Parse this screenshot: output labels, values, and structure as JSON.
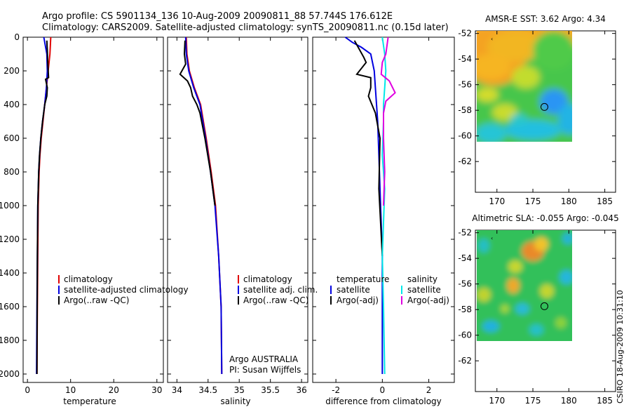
{
  "header": {
    "title1": "Argo profile: CS 5901134_136 10-Aug-2009 20090811_88 57.744S 176.612E",
    "title2": "Climatology: CARS2009. Satellite-adjusted climatology: synTS_20090811.nc (0.15d later)"
  },
  "side_label": "CSIRO 18-Aug-2009 10:31:10",
  "colors": {
    "red": "#e00000",
    "blue": "#0000e0",
    "black": "#000000",
    "cyan": "#00e8e8",
    "magenta": "#e000e0"
  },
  "chart_data": [
    {
      "id": "temp",
      "type": "line",
      "xlabel": "temperature",
      "xlim": [
        -1,
        31.5
      ],
      "ylim": [
        2050,
        0
      ],
      "xticks": [
        0,
        10,
        20,
        30
      ],
      "yticks": [
        0,
        200,
        400,
        600,
        800,
        1000,
        1200,
        1400,
        1600,
        1800,
        2000
      ],
      "legend": [
        {
          "label": "climatology",
          "color": "red"
        },
        {
          "label": "satellite-adjusted climatology",
          "color": "blue"
        },
        {
          "label": "Argo(..raw -QC)",
          "color": "black"
        }
      ],
      "series": [
        {
          "color": "red",
          "x": [
            5.4,
            5.2,
            4.8,
            4.4,
            4.0,
            3.6,
            3.2,
            2.9,
            2.7,
            2.5,
            2.4,
            2.3,
            2.2
          ],
          "y": [
            0,
            100,
            200,
            300,
            400,
            500,
            600,
            700,
            800,
            1000,
            1300,
            1600,
            2000
          ]
        },
        {
          "color": "blue",
          "x": [
            3.8,
            4.5,
            4.6,
            4.4,
            4.0,
            3.5,
            3.1,
            2.8,
            2.6,
            2.4,
            2.3,
            2.2,
            2.1
          ],
          "y": [
            0,
            100,
            200,
            300,
            400,
            500,
            600,
            700,
            800,
            1000,
            1300,
            1600,
            2000
          ]
        },
        {
          "color": "black",
          "x": [
            4.5,
            4.6,
            4.7,
            4.9,
            4.2,
            4.6,
            4.5,
            4.0,
            3.5,
            3.1,
            2.8,
            2.6,
            2.4,
            2.3,
            2.2
          ],
          "y": [
            20,
            80,
            150,
            240,
            250,
            300,
            350,
            400,
            500,
            600,
            700,
            800,
            1000,
            1300,
            2000
          ]
        }
      ]
    },
    {
      "id": "sal",
      "type": "line",
      "xlabel": "salinity",
      "xlim": [
        33.85,
        36.1
      ],
      "ylim": [
        2050,
        0
      ],
      "xticks": [
        34,
        34.5,
        35,
        35.5,
        36
      ],
      "legend": [
        {
          "label": "climatology",
          "color": "red"
        },
        {
          "label": "satellite adj. clim.",
          "color": "blue"
        },
        {
          "label": "Argo(..raw -QC)",
          "color": "black"
        }
      ],
      "annotation": [
        "Argo AUSTRALIA",
        "PI: Susan Wijffels"
      ],
      "series": [
        {
          "color": "red",
          "x": [
            34.15,
            34.16,
            34.2,
            34.28,
            34.38,
            34.47,
            34.55,
            34.62,
            34.67,
            34.71,
            34.72
          ],
          "y": [
            0,
            100,
            200,
            300,
            400,
            600,
            800,
            1000,
            1300,
            1600,
            2000
          ]
        },
        {
          "color": "blue",
          "x": [
            34.14,
            34.15,
            34.19,
            34.27,
            34.37,
            34.46,
            34.54,
            34.61,
            34.67,
            34.71,
            34.72
          ],
          "y": [
            0,
            100,
            200,
            300,
            400,
            600,
            800,
            1000,
            1300,
            1600,
            2000
          ]
        },
        {
          "color": "black",
          "x": [
            34.13,
            34.12,
            34.14,
            34.05,
            34.17,
            34.22,
            34.25,
            34.32,
            34.37,
            34.45,
            34.54,
            34.61
          ],
          "y": [
            20,
            100,
            160,
            220,
            260,
            300,
            350,
            400,
            450,
            600,
            800,
            1000
          ]
        }
      ]
    },
    {
      "id": "diff",
      "type": "line",
      "xlabel": "difference from climatology",
      "xlim": [
        -3,
        3.1
      ],
      "ylim": [
        2050,
        0
      ],
      "xticks": [
        -2,
        0,
        2
      ],
      "legend": [
        {
          "label": "temperature",
          "color": "none"
        },
        {
          "label": "satellite",
          "color": "blue"
        },
        {
          "label": "Argo(-adj)",
          "color": "black"
        },
        {
          "label": "salinity",
          "color": "none"
        },
        {
          "label": "satellite",
          "color": "cyan"
        },
        {
          "label": "Argo(-adj)",
          "color": "magenta"
        }
      ],
      "series": [
        {
          "color": "blue",
          "x": [
            -1.6,
            -1.3,
            -0.9,
            -0.5,
            -0.35,
            -0.3,
            -0.2,
            -0.15,
            -0.1,
            -0.05,
            0,
            0,
            0,
            0
          ],
          "y": [
            0,
            30,
            60,
            100,
            200,
            300,
            500,
            700,
            900,
            1100,
            1300,
            1500,
            1800,
            2000
          ]
        },
        {
          "color": "black",
          "x": [
            -1.2,
            -0.8,
            -0.7,
            -1.1,
            -0.5,
            -0.5,
            -0.6,
            -0.3,
            -0.1,
            -0.15,
            0
          ],
          "y": [
            20,
            120,
            150,
            220,
            240,
            300,
            350,
            450,
            600,
            900,
            1300
          ]
        },
        {
          "color": "cyan",
          "x": [
            0,
            0.1,
            0.15,
            0.1,
            0.05,
            0.05,
            0,
            0.1,
            0.05,
            0,
            0.05,
            0.1
          ],
          "y": [
            0,
            100,
            200,
            300,
            400,
            500,
            700,
            900,
            1100,
            1300,
            1600,
            2000
          ]
        },
        {
          "color": "magenta",
          "x": [
            0.25,
            0.15,
            0.0,
            -0.05,
            0.3,
            0.55,
            0.15,
            0.05,
            0.05,
            0.1,
            0.05
          ],
          "y": [
            0,
            100,
            150,
            220,
            260,
            330,
            380,
            450,
            600,
            800,
            1000
          ]
        }
      ]
    }
  ],
  "maps": [
    {
      "id": "sst",
      "type": "heatmap",
      "title": "AMSR-E SST: 3.62 Argo: 4.34",
      "xlim": [
        167,
        186.5
      ],
      "ylim": [
        -64.4,
        -51.8
      ],
      "xticks": [
        170,
        175,
        180,
        185
      ],
      "yticks": [
        -52,
        -54,
        -56,
        -58,
        -60,
        -62
      ],
      "data_extent": {
        "x": [
          167,
          180
        ],
        "y": [
          -60.2,
          -51.8
        ]
      },
      "marker": {
        "x": 176.6,
        "y": -57.74
      }
    },
    {
      "id": "sla",
      "type": "heatmap",
      "title": "Altimetric SLA: -0.055 Argo: -0.045",
      "xlim": [
        167,
        186.5
      ],
      "ylim": [
        -64.4,
        -51.8
      ],
      "xticks": [
        170,
        175,
        180,
        185
      ],
      "yticks": [
        -52,
        -54,
        -56,
        -58,
        -60,
        -62
      ],
      "data_extent": {
        "x": [
          167,
          180
        ],
        "y": [
          -60.2,
          -51.8
        ]
      },
      "marker": {
        "x": 176.6,
        "y": -57.74
      }
    }
  ]
}
